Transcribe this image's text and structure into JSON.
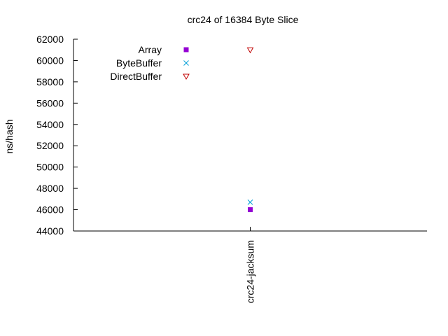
{
  "chart_data": {
    "type": "scatter",
    "title": "crc24 of 16384 Byte Slice",
    "ylabel": "ns/hash",
    "xlabel": "",
    "categories": [
      "crc24-jacksum"
    ],
    "ylim": [
      44000,
      62000
    ],
    "yticks": [
      "44000",
      "46000",
      "48000",
      "50000",
      "52000",
      "54000",
      "56000",
      "58000",
      "60000",
      "62000"
    ],
    "legend_position": "top-left",
    "series": [
      {
        "name": "Array",
        "values": [
          46000
        ],
        "color": "#9400d3",
        "marker": "filled-square"
      },
      {
        "name": "ByteBuffer",
        "values": [
          46700
        ],
        "color": "#009ed7",
        "marker": "x-cross"
      },
      {
        "name": "DirectBuffer",
        "values": [
          61000
        ],
        "color": "#c00000",
        "marker": "open-triangle-down"
      }
    ]
  }
}
